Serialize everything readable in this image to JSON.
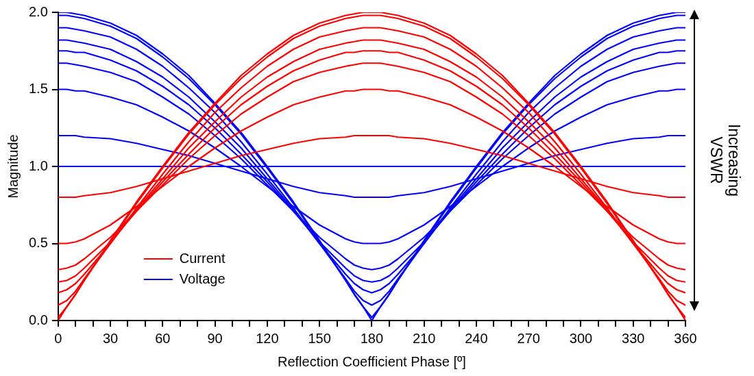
{
  "chart_data": {
    "type": "line",
    "xlabel": "Reflection Coefficient Phase [º]",
    "ylabel": "Magnitude",
    "annotations": [
      "Increasing VSWR"
    ],
    "x": [
      0,
      5,
      10,
      15,
      30,
      45,
      60,
      75,
      90,
      105,
      120,
      135,
      150,
      165,
      170,
      175,
      180,
      185,
      190,
      195,
      210,
      225,
      240,
      255,
      270,
      285,
      300,
      315,
      330,
      345,
      350,
      355,
      360
    ],
    "xlim": [
      0,
      360
    ],
    "xticks": [
      0,
      {
        "value": 10,
        "label": null
      },
      {
        "value": 20,
        "label": null
      },
      30,
      {
        "value": 40,
        "label": null
      },
      {
        "value": 50,
        "label": null
      },
      60,
      {
        "value": 70,
        "label": null
      },
      {
        "value": 80,
        "label": null
      },
      90,
      {
        "value": 100,
        "label": null
      },
      {
        "value": 110,
        "label": null
      },
      120,
      {
        "value": 130,
        "label": null
      },
      {
        "value": 140,
        "label": null
      },
      150,
      {
        "value": 160,
        "label": null
      },
      {
        "value": 170,
        "label": null
      },
      180,
      {
        "value": 190,
        "label": null
      },
      {
        "value": 200,
        "label": null
      },
      210,
      {
        "value": 220,
        "label": null
      },
      {
        "value": 230,
        "label": null
      },
      240,
      {
        "value": 250,
        "label": null
      },
      {
        "value": 260,
        "label": null
      },
      270,
      {
        "value": 280,
        "label": null
      },
      {
        "value": 290,
        "label": null
      },
      300,
      {
        "value": 310,
        "label": null
      },
      {
        "value": 320,
        "label": null
      },
      330,
      {
        "value": 340,
        "label": null
      },
      {
        "value": 350,
        "label": null
      },
      360
    ],
    "ylim": [
      0,
      2
    ],
    "yticks": [
      {
        "value": 0,
        "label": "0.0"
      },
      0.5,
      {
        "value": 1,
        "label": "1.0"
      },
      1.5,
      {
        "value": 2,
        "label": "2.0"
      }
    ],
    "grid": false,
    "legend": "bottom left",
    "marker": "none",
    "line_style": "solid",
    "series": [
      {
        "name": "Current",
        "color": "#ff0000",
        "values": [
          0.8,
          0.8,
          0.8,
          0.81,
          0.83,
          0.87,
          0.92,
          0.97,
          1.02,
          1.07,
          1.11,
          1.15,
          1.18,
          1.19,
          1.2,
          1.2,
          1.2,
          1.2,
          1.2,
          1.19,
          1.18,
          1.15,
          1.11,
          1.07,
          1.02,
          0.97,
          0.92,
          0.87,
          0.83,
          0.81,
          0.8,
          0.8,
          0.8
        ]
      },
      {
        "color": "#ff0000",
        "values": [
          0.5,
          0.5,
          0.51,
          0.53,
          0.62,
          0.74,
          0.87,
          1.0,
          1.12,
          1.23,
          1.32,
          1.4,
          1.45,
          1.49,
          1.49,
          1.5,
          1.5,
          1.5,
          1.49,
          1.49,
          1.45,
          1.4,
          1.32,
          1.23,
          1.12,
          1.0,
          0.87,
          0.74,
          0.62,
          0.53,
          0.51,
          0.5,
          0.5
        ]
      },
      {
        "color": "#ff0000",
        "values": [
          0.33,
          0.34,
          0.36,
          0.4,
          0.54,
          0.71,
          0.88,
          1.05,
          1.2,
          1.34,
          1.45,
          1.55,
          1.61,
          1.65,
          1.66,
          1.67,
          1.67,
          1.67,
          1.66,
          1.65,
          1.61,
          1.55,
          1.45,
          1.34,
          1.2,
          1.05,
          0.88,
          0.71,
          0.54,
          0.4,
          0.36,
          0.34,
          0.33
        ]
      },
      {
        "color": "#ff0000",
        "values": [
          0.25,
          0.26,
          0.29,
          0.34,
          0.51,
          0.71,
          0.9,
          1.08,
          1.25,
          1.4,
          1.52,
          1.62,
          1.69,
          1.74,
          1.74,
          1.75,
          1.75,
          1.75,
          1.74,
          1.74,
          1.69,
          1.62,
          1.52,
          1.4,
          1.25,
          1.08,
          0.9,
          0.71,
          0.51,
          0.34,
          0.29,
          0.26,
          0.25
        ]
      },
      {
        "color": "#ff0000",
        "values": [
          0.18,
          0.2,
          0.24,
          0.3,
          0.5,
          0.72,
          0.92,
          1.12,
          1.29,
          1.45,
          1.58,
          1.68,
          1.76,
          1.8,
          1.81,
          1.82,
          1.82,
          1.82,
          1.81,
          1.8,
          1.76,
          1.68,
          1.58,
          1.45,
          1.29,
          1.12,
          0.92,
          0.72,
          0.5,
          0.3,
          0.24,
          0.2,
          0.18
        ]
      },
      {
        "color": "#ff0000",
        "values": [
          0.1,
          0.13,
          0.19,
          0.27,
          0.5,
          0.73,
          0.95,
          1.16,
          1.35,
          1.51,
          1.65,
          1.76,
          1.84,
          1.88,
          1.89,
          1.9,
          1.9,
          1.9,
          1.89,
          1.88,
          1.84,
          1.76,
          1.65,
          1.51,
          1.35,
          1.16,
          0.95,
          0.73,
          0.5,
          0.27,
          0.19,
          0.13,
          0.1
        ]
      },
      {
        "color": "#ff0000",
        "values": [
          0.02,
          0.09,
          0.17,
          0.26,
          0.51,
          0.76,
          0.99,
          1.21,
          1.4,
          1.57,
          1.71,
          1.83,
          1.91,
          1.96,
          1.97,
          1.98,
          1.98,
          1.98,
          1.97,
          1.96,
          1.91,
          1.83,
          1.71,
          1.57,
          1.4,
          1.21,
          0.99,
          0.76,
          0.51,
          0.26,
          0.17,
          0.09,
          0.02
        ]
      },
      {
        "color": "#ff0000",
        "values": [
          0,
          0.09,
          0.17,
          0.26,
          0.52,
          0.77,
          1,
          1.22,
          1.41,
          1.59,
          1.73,
          1.85,
          1.93,
          1.98,
          1.99,
          2,
          2,
          2,
          1.99,
          1.98,
          1.93,
          1.85,
          1.73,
          1.59,
          1.41,
          1.22,
          1,
          0.77,
          0.52,
          0.26,
          0.17,
          0.09,
          0
        ]
      },
      {
        "name": "Voltage",
        "color": "#0000ff",
        "values": [
          1,
          1,
          1,
          1,
          1,
          1,
          1,
          1,
          1,
          1,
          1,
          1,
          1,
          1,
          1,
          1,
          1,
          1,
          1,
          1,
          1,
          1,
          1,
          1,
          1,
          1,
          1,
          1,
          1,
          1,
          1,
          1,
          1
        ]
      },
      {
        "color": "#0000ff",
        "values": [
          1.2,
          1.2,
          1.2,
          1.19,
          1.18,
          1.15,
          1.11,
          1.07,
          1.02,
          0.97,
          0.92,
          0.87,
          0.83,
          0.81,
          0.8,
          0.8,
          0.8,
          0.8,
          0.8,
          0.81,
          0.83,
          0.87,
          0.92,
          0.97,
          1.02,
          1.07,
          1.11,
          1.15,
          1.18,
          1.19,
          1.2,
          1.2,
          1.2
        ]
      },
      {
        "color": "#0000ff",
        "values": [
          1.5,
          1.5,
          1.49,
          1.49,
          1.45,
          1.4,
          1.32,
          1.23,
          1.12,
          1.0,
          0.87,
          0.74,
          0.62,
          0.53,
          0.51,
          0.5,
          0.5,
          0.5,
          0.51,
          0.53,
          0.62,
          0.74,
          0.87,
          1.0,
          1.12,
          1.23,
          1.32,
          1.4,
          1.45,
          1.49,
          1.49,
          1.5,
          1.5
        ]
      },
      {
        "color": "#0000ff",
        "values": [
          1.67,
          1.67,
          1.66,
          1.65,
          1.61,
          1.55,
          1.45,
          1.34,
          1.2,
          1.05,
          0.88,
          0.71,
          0.54,
          0.4,
          0.36,
          0.34,
          0.33,
          0.34,
          0.36,
          0.4,
          0.54,
          0.71,
          0.88,
          1.05,
          1.2,
          1.34,
          1.45,
          1.55,
          1.61,
          1.65,
          1.66,
          1.67,
          1.67
        ]
      },
      {
        "color": "#0000ff",
        "values": [
          1.75,
          1.75,
          1.74,
          1.74,
          1.69,
          1.62,
          1.52,
          1.4,
          1.25,
          1.08,
          0.9,
          0.71,
          0.51,
          0.34,
          0.29,
          0.26,
          0.25,
          0.26,
          0.29,
          0.34,
          0.51,
          0.71,
          0.9,
          1.08,
          1.25,
          1.4,
          1.52,
          1.62,
          1.69,
          1.74,
          1.74,
          1.75,
          1.75
        ]
      },
      {
        "color": "#0000ff",
        "values": [
          1.82,
          1.82,
          1.81,
          1.8,
          1.76,
          1.68,
          1.58,
          1.45,
          1.29,
          1.12,
          0.92,
          0.72,
          0.5,
          0.3,
          0.24,
          0.2,
          0.18,
          0.2,
          0.24,
          0.3,
          0.5,
          0.72,
          0.92,
          1.12,
          1.29,
          1.45,
          1.58,
          1.68,
          1.76,
          1.8,
          1.81,
          1.82,
          1.82
        ]
      },
      {
        "color": "#0000ff",
        "values": [
          1.9,
          1.9,
          1.89,
          1.88,
          1.84,
          1.76,
          1.65,
          1.51,
          1.35,
          1.16,
          0.95,
          0.73,
          0.5,
          0.27,
          0.19,
          0.13,
          0.1,
          0.13,
          0.19,
          0.27,
          0.5,
          0.73,
          0.95,
          1.16,
          1.35,
          1.51,
          1.65,
          1.76,
          1.84,
          1.88,
          1.89,
          1.9,
          1.9
        ]
      },
      {
        "color": "#0000ff",
        "values": [
          1.98,
          1.98,
          1.97,
          1.96,
          1.91,
          1.83,
          1.71,
          1.57,
          1.4,
          1.21,
          0.99,
          0.76,
          0.51,
          0.26,
          0.17,
          0.09,
          0.02,
          0.09,
          0.17,
          0.26,
          0.51,
          0.76,
          0.99,
          1.21,
          1.4,
          1.57,
          1.71,
          1.83,
          1.91,
          1.96,
          1.97,
          1.98,
          1.98
        ]
      },
      {
        "color": "#0000ff",
        "values": [
          2,
          2,
          1.99,
          1.98,
          1.93,
          1.85,
          1.73,
          1.59,
          1.41,
          1.22,
          1,
          0.77,
          0.52,
          0.26,
          0.17,
          0.09,
          0,
          0.09,
          0.17,
          0.26,
          0.52,
          0.77,
          1,
          1.22,
          1.41,
          1.59,
          1.73,
          1.85,
          1.93,
          1.98,
          1.99,
          2,
          2
        ]
      }
    ]
  }
}
